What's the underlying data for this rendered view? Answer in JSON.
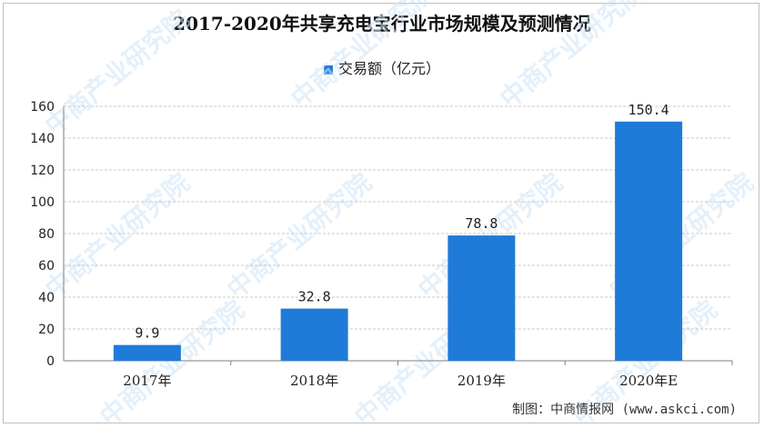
{
  "chart_data": {
    "type": "bar",
    "title": "2017-2020年共享充电宝行业市场规模及预测情况",
    "categories": [
      "2017年",
      "2018年",
      "2019年",
      "2020年E"
    ],
    "series": [
      {
        "name": "交易额（亿元）",
        "values": [
          9.9,
          32.8,
          78.8,
          150.4
        ]
      }
    ],
    "data_labels": [
      "9.9",
      "32.8",
      "78.8",
      "150.4"
    ],
    "ylim": [
      0,
      160
    ],
    "yticks": [
      0,
      20,
      40,
      60,
      80,
      100,
      120,
      140,
      160
    ],
    "ytick_labels": [
      "0",
      "20",
      "40",
      "60",
      "80",
      "100",
      "120",
      "140",
      "160"
    ],
    "grid": true,
    "legend": "top-center",
    "bar_color": "#1f7bd8",
    "grid_color": "#c8c8c8"
  },
  "watermark": "中商产业研究院",
  "footer": "制图：中商情报网 (www.askci.com)"
}
